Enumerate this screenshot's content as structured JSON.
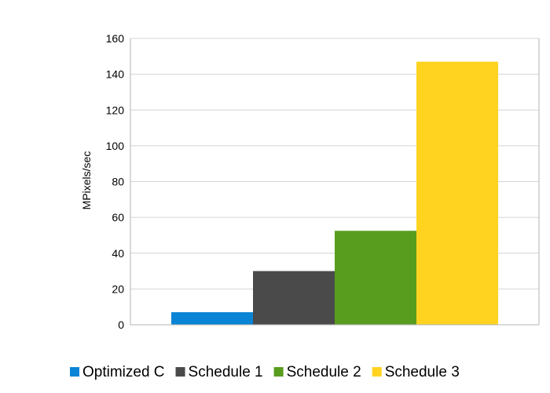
{
  "chart_data": {
    "type": "bar",
    "title": "",
    "xlabel": "",
    "ylabel": "MPixels/sec",
    "ylim": [
      0,
      160
    ],
    "yticks": [
      0,
      20,
      40,
      60,
      80,
      100,
      120,
      140,
      160
    ],
    "grid": true,
    "legend_position": "bottom",
    "series": [
      {
        "name": "Optimized C",
        "values": [
          7
        ],
        "color": "#0a84d4"
      },
      {
        "name": "Schedule 1",
        "values": [
          30
        ],
        "color": "#4a4a4a"
      },
      {
        "name": "Schedule 2",
        "values": [
          52.5
        ],
        "color": "#589d1d"
      },
      {
        "name": "Schedule 3",
        "values": [
          147
        ],
        "color": "#ffd320"
      }
    ]
  }
}
